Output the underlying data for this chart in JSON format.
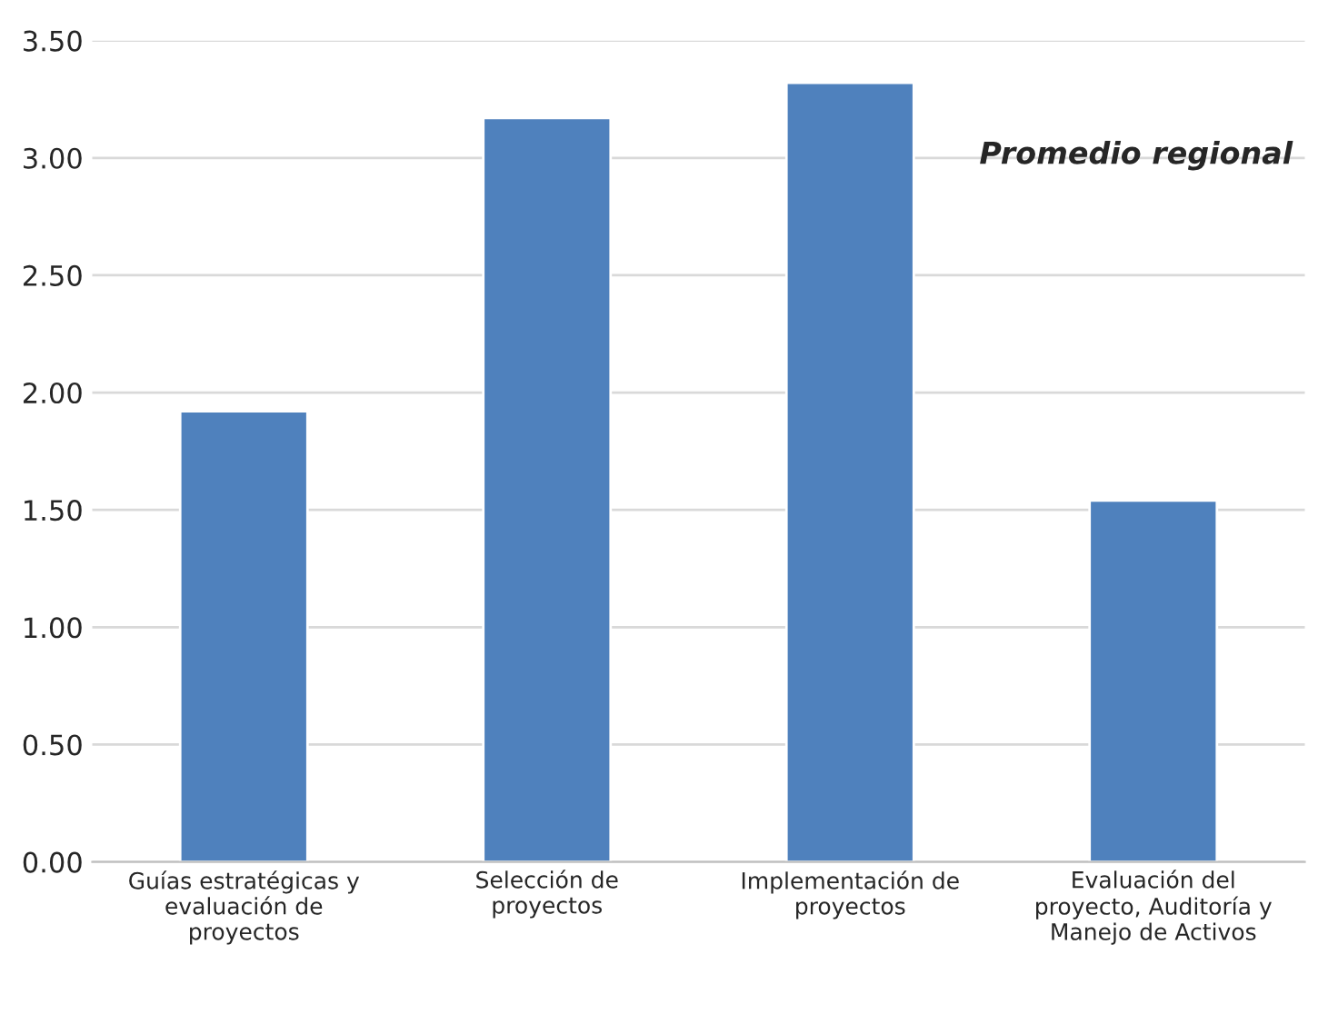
{
  "chart_data": {
    "type": "bar",
    "categories": [
      "Guías estratégicas y\nevaluación de\nproyectos",
      "Selección de\nproyectos",
      "Implementación de\nproyectos",
      "Evaluación del\nproyecto, Auditoría y\nManejo de Activos"
    ],
    "values": [
      1.92,
      3.17,
      3.32,
      1.54
    ],
    "color": "#4f81bd",
    "ylim": [
      0,
      3.5
    ],
    "yticks": [
      {
        "value": 0,
        "label": "0.00"
      },
      {
        "value": 0.5,
        "label": "0.50"
      },
      {
        "value": 1,
        "label": "1.00"
      },
      {
        "value": 1.5,
        "label": "1.50"
      },
      {
        "value": 2,
        "label": "2.00"
      },
      {
        "value": 2.5,
        "label": "2.50"
      },
      {
        "value": 3,
        "label": "3.00"
      },
      {
        "value": 3.5,
        "label": "3.50"
      }
    ],
    "grid": "y",
    "annotations": [
      "Promedio regional"
    ]
  }
}
